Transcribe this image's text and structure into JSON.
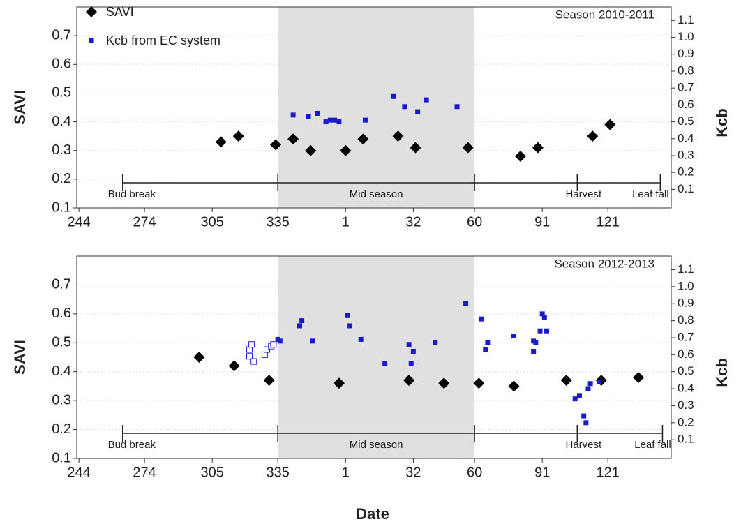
{
  "chart_data": [
    {
      "type": "scatter",
      "title": "Season 2010-2011",
      "ylabel": "SAVI",
      "y2label": "Kcb",
      "xlim": [
        243,
        515
      ],
      "xticks": [
        244,
        274,
        305,
        335,
        {
          "value": 366,
          "label": "1"
        },
        {
          "value": 397,
          "label": "32"
        },
        {
          "value": 425,
          "label": "60"
        },
        {
          "value": 456,
          "label": "91"
        },
        {
          "value": 486,
          "label": "121"
        }
      ],
      "ylim": [
        0.1,
        0.8
      ],
      "yticks": [
        0.1,
        0.2,
        0.3,
        0.4,
        0.5,
        0.6,
        0.7
      ],
      "y2lim": [
        -0.01,
        1.18
      ],
      "y2ticks": [
        0.1,
        0.2,
        0.3,
        0.4,
        0.5,
        0.6,
        0.7,
        0.8,
        0.9,
        {
          "value": 1,
          "label": "1.0"
        },
        1.1
      ],
      "grid": true,
      "legend": "upper left",
      "shade_color": "#e0e0e0",
      "stages": [
        "Bud break",
        "Mid season",
        "Harvest",
        "Leaf fall"
      ],
      "stage_bounds": [
        264,
        335,
        425,
        472,
        510
      ],
      "series": [
        {
          "name": "SAVI",
          "color": "#000000",
          "marker": "diamond",
          "x": [
            309,
            317,
            334,
            342,
            350,
            366,
            374,
            390,
            398,
            422,
            446,
            454,
            479,
            487
          ],
          "values": [
            0.33,
            0.35,
            0.32,
            0.34,
            0.3,
            0.3,
            0.34,
            0.35,
            0.31,
            0.31,
            0.28,
            0.31,
            0.35,
            0.39
          ]
        },
        {
          "name": "Kcb from EC system",
          "color": "#1a1acd",
          "marker": "square",
          "axis": "y2",
          "x": [
            342,
            349,
            353,
            357,
            359,
            361,
            363,
            375,
            388,
            393,
            399,
            403,
            417
          ],
          "values": [
            0.54,
            0.53,
            0.55,
            0.5,
            0.51,
            0.51,
            0.5,
            0.51,
            0.65,
            0.59,
            0.56,
            0.63,
            0.59
          ]
        }
      ]
    },
    {
      "type": "scatter",
      "title": "Season 2012-2013",
      "ylabel": "SAVI",
      "y2label": "Kcb",
      "xlabel": "Date",
      "xlim": [
        243,
        515
      ],
      "xticks": [
        244,
        274,
        305,
        335,
        {
          "value": 366,
          "label": "1"
        },
        {
          "value": 397,
          "label": "32"
        },
        {
          "value": 425,
          "label": "60"
        },
        {
          "value": 456,
          "label": "91"
        },
        {
          "value": 486,
          "label": "121"
        }
      ],
      "ylim": [
        0.1,
        0.8
      ],
      "yticks": [
        0.1,
        0.2,
        0.3,
        0.4,
        0.5,
        0.6,
        0.7
      ],
      "y2lim": [
        -0.01,
        1.18
      ],
      "y2ticks": [
        0.1,
        0.2,
        0.3,
        0.4,
        0.5,
        0.6,
        0.7,
        0.8,
        0.9,
        {
          "value": 1,
          "label": "1.0"
        },
        1.1
      ],
      "grid": true,
      "shade_color": "#e0e0e0",
      "stages": [
        "Bud break",
        "Mid season",
        "Harvest",
        "Leaf fall"
      ],
      "stage_bounds": [
        264,
        335,
        425,
        472,
        511
      ],
      "series": [
        {
          "color": "#000000",
          "marker": "diamond",
          "x": [
            299,
            315,
            331,
            363,
            395,
            411,
            427,
            443,
            467,
            483,
            500
          ],
          "values": [
            0.45,
            0.42,
            0.37,
            0.36,
            0.37,
            0.36,
            0.36,
            0.35,
            0.37,
            0.37,
            0.38
          ]
        },
        {
          "color": "#1a1acd",
          "marker": "square",
          "axis": "y2",
          "x": [
            335,
            336,
            345,
            346,
            351,
            367,
            368,
            373,
            384,
            395,
            396,
            397,
            407,
            421,
            428,
            430,
            431,
            443,
            452,
            452,
            453,
            455,
            456,
            457,
            458,
            471,
            473,
            475,
            476,
            477,
            478,
            482
          ],
          "values": [
            0.69,
            0.68,
            0.77,
            0.8,
            0.68,
            0.83,
            0.77,
            0.69,
            0.55,
            0.66,
            0.55,
            0.62,
            0.67,
            0.9,
            0.81,
            0.63,
            0.67,
            0.71,
            0.68,
            0.62,
            0.67,
            0.74,
            0.84,
            0.82,
            0.74,
            0.34,
            0.36,
            0.24,
            0.2,
            0.4,
            0.43,
            0.44
          ]
        },
        {
          "color": "#1a1acd",
          "marker": "open-square",
          "axis": "y2",
          "x": [
            322,
            323,
            322,
            324,
            329,
            330,
            332,
            333
          ],
          "values": [
            0.63,
            0.66,
            0.59,
            0.56,
            0.6,
            0.63,
            0.65,
            0.66
          ]
        }
      ]
    }
  ]
}
